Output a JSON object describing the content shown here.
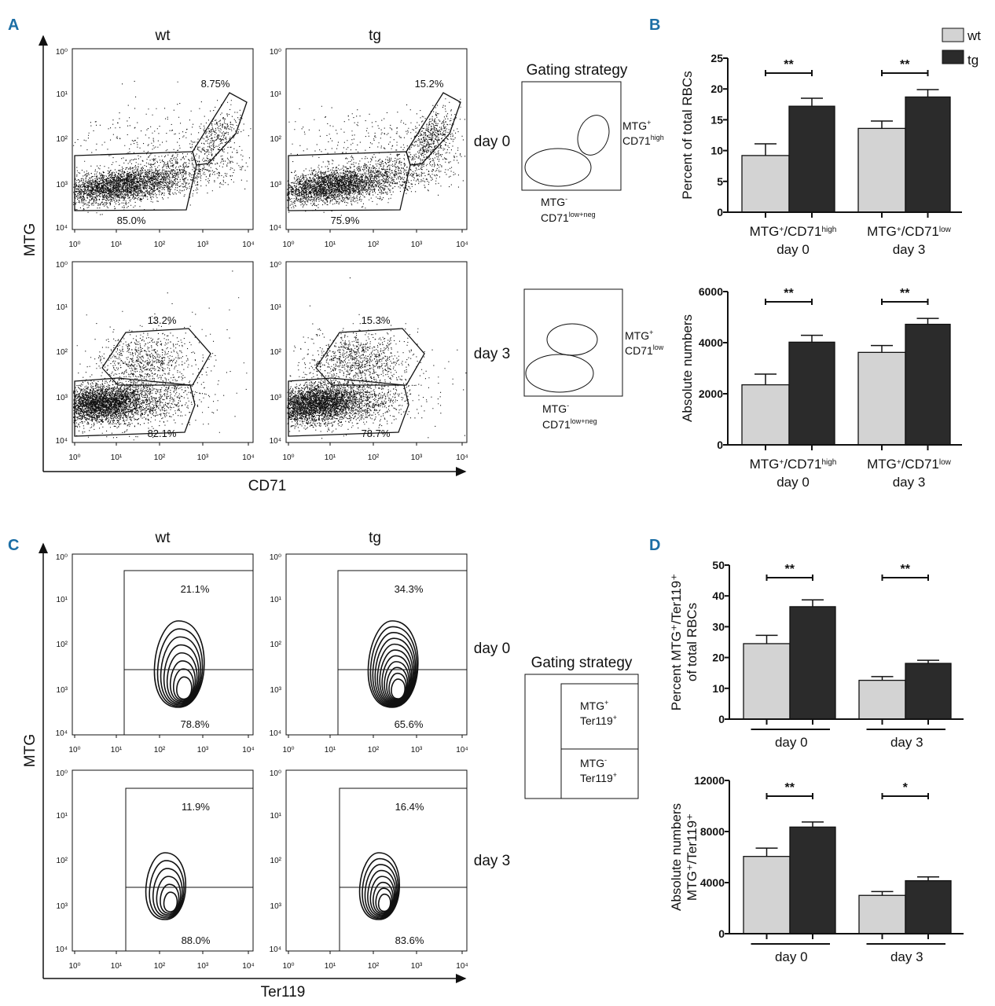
{
  "panels": {
    "A": "A",
    "B": "B",
    "C": "C",
    "D": "D"
  },
  "colors": {
    "panel_letter": "#1b6ea5",
    "wt": "#d3d3d3",
    "tg": "#2b2b2b"
  },
  "flow_ticks": [
    "10⁰",
    "10¹",
    "10²",
    "10³",
    "10⁴"
  ],
  "panel_a": {
    "col_wt": "wt",
    "col_tg": "tg",
    "y_label": "MTG",
    "x_label": "CD71",
    "day0": "day 0",
    "day3": "day 3",
    "wt_day0": {
      "upper": "8.75%",
      "lower": "85.0%"
    },
    "tg_day0": {
      "upper": "15.2%",
      "lower": "75.9%"
    },
    "wt_day3": {
      "upper": "13.2%",
      "lower": "82.1%"
    },
    "tg_day3": {
      "upper": "15.3%",
      "lower": "78.7%"
    },
    "gating_title": "Gating strategy",
    "gate1_pos": "MTG",
    "gate1_pos_sup": "+",
    "gate1_cd": "CD71",
    "gate1_cd_sup": "high",
    "gate_neg": "MTG",
    "gate_neg_sup": "-",
    "gate_neg_cd": "CD71",
    "gate_neg_cd_sup": "low+neg",
    "gate2_pos": "MTG",
    "gate2_pos_sup": "+",
    "gate2_cd": "CD71",
    "gate2_cd_sup": "low"
  },
  "panel_c": {
    "col_wt": "wt",
    "col_tg": "tg",
    "y_label": "MTG",
    "x_label": "Ter119",
    "day0": "day 0",
    "day3": "day 3",
    "wt_day0": {
      "upper": "21.1%",
      "lower": "78.8%"
    },
    "tg_day0": {
      "upper": "34.3%",
      "lower": "65.6%"
    },
    "wt_day3": {
      "upper": "11.9%",
      "lower": "88.0%"
    },
    "tg_day3": {
      "upper": "16.4%",
      "lower": "83.6%"
    },
    "gating_title": "Gating strategy",
    "gate_pos": "MTG",
    "gate_pos_sup": "+",
    "gate_ter": "Ter119",
    "gate_ter_sup": "+",
    "gate_neg": "MTG",
    "gate_neg_sup": "-"
  },
  "chart_data": [
    {
      "type": "bar",
      "id": "B-top",
      "ylabel": "Percent of total RBCs",
      "categories": [
        {
          "line1": [
            "MTG",
            "+",
            "/CD71",
            "high"
          ],
          "line2": "day 0"
        },
        {
          "line1": [
            "MTG",
            "+",
            "/CD71",
            "low"
          ],
          "line2": "day 3"
        }
      ],
      "series": [
        {
          "name": "wt",
          "values": [
            9.2,
            13.6
          ],
          "errors": [
            1.9,
            1.2
          ]
        },
        {
          "name": "tg",
          "values": [
            17.2,
            18.7
          ],
          "errors": [
            1.3,
            1.2
          ]
        }
      ],
      "significance": [
        "**",
        "**"
      ],
      "ylim": [
        0,
        25
      ],
      "yticks": [
        "0",
        "5",
        "10",
        "15",
        "20",
        "25"
      ],
      "ytick_values": [
        0,
        5,
        10,
        15,
        20,
        25
      ],
      "legend": [
        "wt",
        "tg"
      ],
      "legend_position": "top-right"
    },
    {
      "type": "bar",
      "id": "B-bottom",
      "ylabel": "Absolute numbers",
      "categories": [
        {
          "line1": [
            "MTG",
            "+",
            "/CD71",
            "high"
          ],
          "line2": "day 0"
        },
        {
          "line1": [
            "MTG",
            "+",
            "/CD71",
            "low"
          ],
          "line2": "day 3"
        }
      ],
      "series": [
        {
          "name": "wt",
          "values": [
            2350,
            3620
          ],
          "errors": [
            420,
            270
          ]
        },
        {
          "name": "tg",
          "values": [
            4020,
            4720
          ],
          "errors": [
            270,
            230
          ]
        }
      ],
      "significance": [
        "**",
        "**"
      ],
      "ylim": [
        0,
        6000
      ],
      "yticks": [
        "0",
        "2000",
        "4000",
        "6000"
      ],
      "ytick_values": [
        0,
        2000,
        4000,
        6000
      ]
    },
    {
      "type": "bar",
      "id": "D-top",
      "ylabel": [
        "Percent MTG⁺/Ter119⁺",
        "of total RBCs"
      ],
      "categories": [
        {
          "line1": null,
          "line2": "day 0"
        },
        {
          "line1": null,
          "line2": "day 3"
        }
      ],
      "series": [
        {
          "name": "wt",
          "values": [
            24.5,
            12.6
          ],
          "errors": [
            2.7,
            1.2
          ]
        },
        {
          "name": "tg",
          "values": [
            36.5,
            18.1
          ],
          "errors": [
            2.2,
            1.0
          ]
        }
      ],
      "significance": [
        "**",
        "**"
      ],
      "ylim": [
        0,
        50
      ],
      "yticks": [
        "0",
        "10",
        "20",
        "30",
        "40",
        "50"
      ],
      "ytick_values": [
        0,
        10,
        20,
        30,
        40,
        50
      ]
    },
    {
      "type": "bar",
      "id": "D-bottom",
      "ylabel": [
        "Absolute numbers",
        "MTG⁺/Ter119⁺"
      ],
      "categories": [
        {
          "line1": null,
          "line2": "day 0"
        },
        {
          "line1": null,
          "line2": "day 3"
        }
      ],
      "series": [
        {
          "name": "wt",
          "values": [
            6050,
            3000
          ],
          "errors": [
            650,
            300
          ]
        },
        {
          "name": "tg",
          "values": [
            8350,
            4150
          ],
          "errors": [
            400,
            300
          ]
        }
      ],
      "significance": [
        "**",
        "*"
      ],
      "ylim": [
        0,
        12000
      ],
      "yticks": [
        "0",
        "4000",
        "8000",
        "12000"
      ],
      "ytick_values": [
        0,
        4000,
        8000,
        12000
      ]
    }
  ]
}
